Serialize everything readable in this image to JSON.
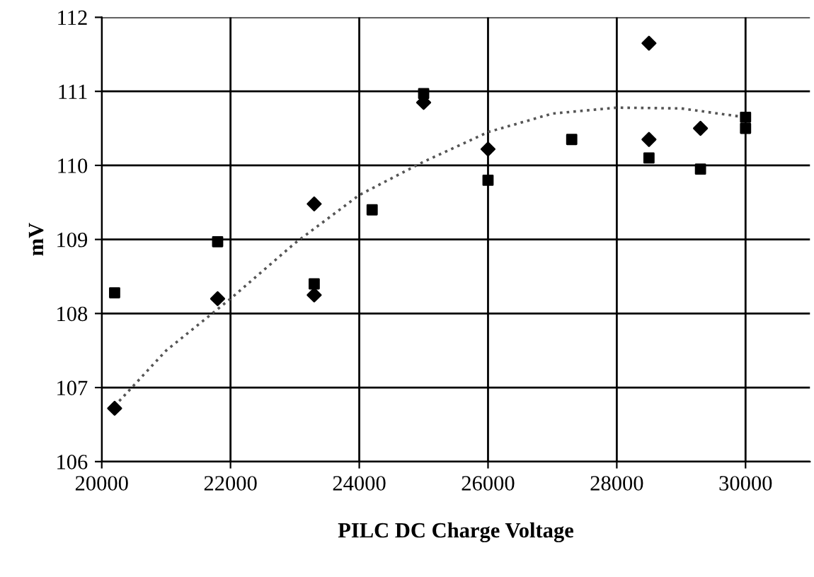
{
  "chart_data": {
    "type": "scatter",
    "xlabel": "PILC DC Charge Voltage",
    "ylabel": "mV",
    "xlim": [
      20000,
      31000
    ],
    "xticks": [
      20000,
      22000,
      24000,
      26000,
      28000,
      30000
    ],
    "ylim": [
      106,
      112
    ],
    "yticks": [
      106,
      107,
      108,
      109,
      110,
      111,
      112
    ],
    "grid": true,
    "legend": false,
    "series": [
      {
        "color": "#000000",
        "marker": "diamond",
        "x": [
          20200,
          21800,
          23300,
          23300,
          25000,
          26000,
          28500,
          28500,
          29300
        ],
        "values": [
          106.72,
          108.2,
          109.48,
          108.25,
          110.85,
          110.22,
          111.65,
          110.35,
          110.5
        ]
      },
      {
        "color": "#000000",
        "marker": "square",
        "x": [
          20200,
          21800,
          23300,
          24200,
          25000,
          26000,
          27300,
          28500,
          29300,
          30000,
          30000
        ],
        "values": [
          108.28,
          108.97,
          108.4,
          109.4,
          110.97,
          109.8,
          110.35,
          110.1,
          109.95,
          110.5,
          110.65
        ]
      },
      {
        "type": "line",
        "color": "#555555",
        "line_style": "dotted",
        "marker": "none",
        "x": [
          20200,
          21000,
          22000,
          23000,
          24000,
          25000,
          26000,
          27000,
          28000,
          29000,
          30000
        ],
        "values": [
          106.75,
          107.5,
          108.2,
          108.95,
          109.6,
          110.05,
          110.45,
          110.7,
          110.78,
          110.77,
          110.65
        ]
      }
    ]
  }
}
